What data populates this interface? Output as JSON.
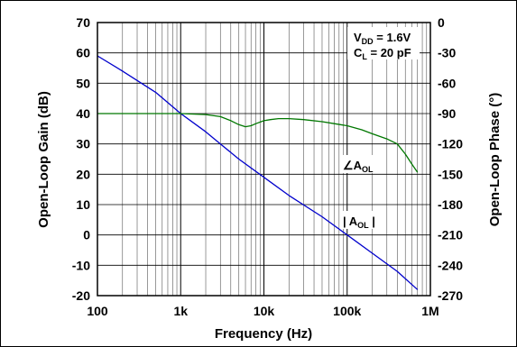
{
  "chart_data": {
    "type": "line",
    "xlabel": "Frequency (Hz)",
    "ylabel_left": "Open-Loop Gain (dB)",
    "ylabel_right": "Open-Loop Phase (°)",
    "x_scale": "log",
    "xlim": [
      100,
      1000000
    ],
    "ylim_left": [
      -20,
      70
    ],
    "ylim_right": [
      -270,
      0
    ],
    "x_ticks": [
      {
        "value": 100,
        "label": "100"
      },
      {
        "value": 1000,
        "label": "1k"
      },
      {
        "value": 10000,
        "label": "10k"
      },
      {
        "value": 100000,
        "label": "100k"
      },
      {
        "value": 1000000,
        "label": "1M"
      }
    ],
    "y_ticks_left": [
      "70",
      "60",
      "50",
      "40",
      "30",
      "20",
      "10",
      "0",
      "-10",
      "-20"
    ],
    "y_ticks_right": [
      "0",
      "-30",
      "-60",
      "-90",
      "-120",
      "-150",
      "-180",
      "-210",
      "-240",
      "-270"
    ],
    "grid": true,
    "annotations": {
      "vdd_main": "V",
      "vdd_sub": "DD",
      "vdd_val": " = 1.6V",
      "cl_main": "C",
      "cl_sub": "L",
      "cl_val": " = 20 pF",
      "phase_main": "∠A",
      "phase_sub": "OL",
      "gain_pre": "| A",
      "gain_sub": "OL",
      "gain_post": " |"
    },
    "series": [
      {
        "label": "| AOL |",
        "axis": "left",
        "color": "#0000cc",
        "x": [
          100,
          200,
          500,
          1000,
          2000,
          3000,
          5000,
          10000,
          20000,
          50000,
          100000,
          200000,
          400000,
          700000
        ],
        "y": [
          59,
          54,
          47,
          40,
          34,
          30,
          25,
          19,
          13,
          6,
          0,
          -6,
          -12,
          -18
        ]
      },
      {
        "label": "∠AOL",
        "axis": "right",
        "color": "#007700",
        "x": [
          100,
          200,
          500,
          1000,
          2000,
          3000,
          4000,
          5000,
          6000,
          7000,
          8000,
          10000,
          12000,
          15000,
          20000,
          30000,
          50000,
          70000,
          100000,
          150000,
          200000,
          300000,
          400000,
          500000,
          600000,
          700000
        ],
        "y": [
          -90,
          -90,
          -90,
          -90,
          -91,
          -93,
          -97,
          -101,
          -103,
          -102,
          -100,
          -97,
          -96,
          -95,
          -95,
          -96,
          -98,
          -100,
          -102,
          -106,
          -110,
          -115,
          -120,
          -130,
          -140,
          -148
        ]
      }
    ]
  }
}
